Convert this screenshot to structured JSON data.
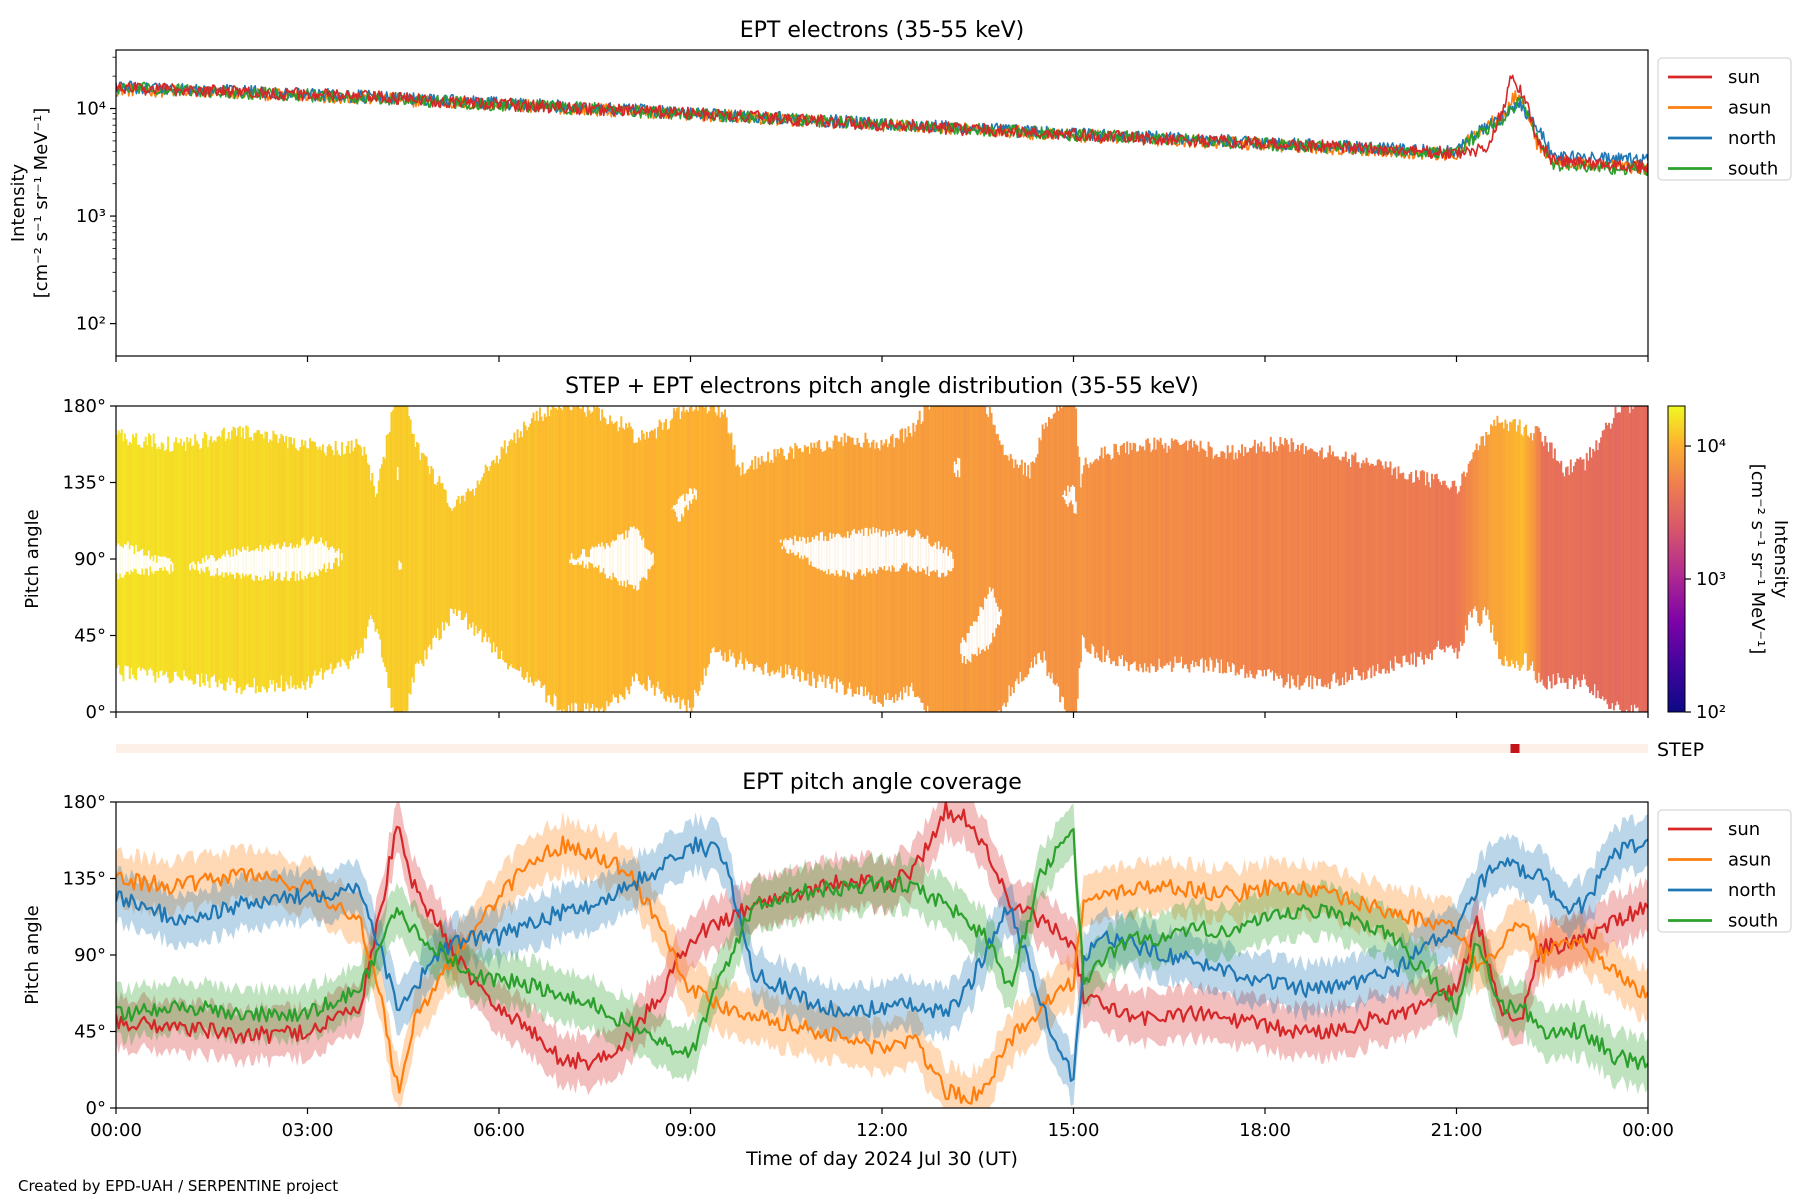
{
  "figure": {
    "footer": "Created by EPD-UAH / SERPENTINE project",
    "colors": {
      "sun": "#d62728",
      "asun": "#ff7f0e",
      "north": "#1f77b4",
      "south": "#2ca02c"
    }
  },
  "chart_data": [
    {
      "type": "line",
      "title": "EPT electrons (35-55 keV)",
      "ylabel_line1": "Intensity",
      "ylabel_line2": "[cm⁻² s⁻¹ sr⁻¹ MeV⁻¹]",
      "yscale": "log",
      "ylim": [
        50,
        35000
      ],
      "yticks": [
        {
          "value": 100,
          "label": "10²"
        },
        {
          "value": 1000,
          "label": "10³"
        },
        {
          "value": 10000,
          "label": "10⁴"
        }
      ],
      "xlim": [
        "00:00",
        "24:00"
      ],
      "legend": {
        "position": "outside-right",
        "entries": [
          "sun",
          "asun",
          "north",
          "south"
        ]
      },
      "series": [
        {
          "name": "sun",
          "color": "#d62728",
          "x": [
            "00:00",
            "01:00",
            "02:00",
            "03:00",
            "04:00",
            "05:00",
            "06:00",
            "07:00",
            "08:00",
            "09:00",
            "10:00",
            "11:00",
            "12:00",
            "13:00",
            "14:00",
            "15:00",
            "16:00",
            "17:00",
            "18:00",
            "19:00",
            "20:00",
            "21:00",
            "21:30",
            "21:45",
            "21:50",
            "22:00",
            "22:15",
            "22:30",
            "23:00",
            "24:00"
          ],
          "values": [
            15500,
            15000,
            14200,
            13500,
            12800,
            11800,
            11000,
            10200,
            9600,
            9000,
            8300,
            7700,
            7100,
            6600,
            6100,
            5700,
            5300,
            5000,
            4700,
            4400,
            4100,
            3800,
            4200,
            10000,
            20000,
            15000,
            5000,
            3300,
            3100,
            2900
          ]
        },
        {
          "name": "asun",
          "color": "#ff7f0e",
          "x": [
            "00:00",
            "03:00",
            "06:00",
            "09:00",
            "12:00",
            "15:00",
            "18:00",
            "21:00",
            "21:45",
            "21:55",
            "22:00",
            "22:15",
            "22:30",
            "24:00"
          ],
          "values": [
            15000,
            13200,
            10800,
            8800,
            7000,
            5600,
            4600,
            3700,
            9000,
            13000,
            12000,
            4800,
            3200,
            2800
          ]
        },
        {
          "name": "north",
          "color": "#1f77b4",
          "x": [
            "00:00",
            "03:00",
            "06:00",
            "09:00",
            "12:00",
            "15:00",
            "18:00",
            "21:00",
            "21:45",
            "22:00",
            "22:10",
            "22:30",
            "24:00"
          ],
          "values": [
            16000,
            13600,
            11100,
            9000,
            7200,
            5800,
            4800,
            3900,
            8500,
            11000,
            8000,
            3600,
            3300
          ]
        },
        {
          "name": "south",
          "color": "#2ca02c",
          "x": [
            "00:00",
            "03:00",
            "06:00",
            "09:00",
            "12:00",
            "15:00",
            "18:00",
            "21:00",
            "21:45",
            "22:00",
            "22:15",
            "22:30",
            "24:00"
          ],
          "values": [
            15600,
            13300,
            10900,
            8900,
            7100,
            5700,
            4700,
            3800,
            8000,
            12000,
            5500,
            3000,
            2700
          ]
        }
      ]
    },
    {
      "type": "heatmap",
      "title": "STEP + EPT electrons pitch angle distribution (35-55 keV)",
      "ylabel": "Pitch angle",
      "ylim": [
        0,
        180
      ],
      "yticks": [
        {
          "value": 0,
          "label": "0°"
        },
        {
          "value": 45,
          "label": "45°"
        },
        {
          "value": 90,
          "label": "90°"
        },
        {
          "value": 135,
          "label": "135°"
        },
        {
          "value": 180,
          "label": "180°"
        }
      ],
      "xlim": [
        "00:00",
        "24:00"
      ],
      "colorbar": {
        "label": "Intensity",
        "units": "[cm⁻² s⁻¹ sr⁻¹ MeV⁻¹]",
        "scale": "log",
        "range": [
          100,
          20000
        ],
        "ticks": [
          {
            "value": 100,
            "label": "10²"
          },
          {
            "value": 1000,
            "label": "10³"
          },
          {
            "value": 10000,
            "label": "10⁴"
          }
        ],
        "colormap": "plasma"
      },
      "intensity_trend": {
        "x": [
          "00:00",
          "03:00",
          "06:00",
          "09:00",
          "12:00",
          "15:00",
          "18:00",
          "21:00",
          "22:00",
          "22:20",
          "24:00"
        ],
        "values": [
          15500,
          13300,
          10900,
          8900,
          7100,
          5700,
          4700,
          3800,
          10000,
          3300,
          3000
        ]
      }
    },
    {
      "type": "bar",
      "label": "STEP",
      "xlim": [
        "00:00",
        "24:00"
      ],
      "marker_time": "21:55"
    },
    {
      "type": "line",
      "title": "EPT pitch angle coverage",
      "ylabel": "Pitch angle",
      "xlabel": "Time of day 2024 Jul 30 (UT)",
      "ylim": [
        0,
        180
      ],
      "yticks": [
        {
          "value": 0,
          "label": "0°"
        },
        {
          "value": 45,
          "label": "45°"
        },
        {
          "value": 90,
          "label": "90°"
        },
        {
          "value": 135,
          "label": "135°"
        },
        {
          "value": 180,
          "label": "180°"
        }
      ],
      "xticks": [
        "00:00",
        "03:00",
        "06:00",
        "09:00",
        "12:00",
        "15:00",
        "18:00",
        "21:00",
        "00:00"
      ],
      "legend": {
        "position": "outside-right",
        "entries": [
          "sun",
          "asun",
          "north",
          "south"
        ]
      },
      "series": [
        {
          "name": "sun",
          "color": "#d62728",
          "x": [
            "00:00",
            "01:00",
            "02:00",
            "03:00",
            "03:50",
            "04:10",
            "04:25",
            "04:40",
            "05:00",
            "05:30",
            "06:00",
            "06:30",
            "07:00",
            "07:30",
            "08:00",
            "08:30",
            "09:00",
            "09:30",
            "10:00",
            "10:30",
            "11:00",
            "11:30",
            "12:00",
            "12:30",
            "13:00",
            "13:20",
            "13:40",
            "14:00",
            "14:30",
            "15:00",
            "15:10",
            "15:30",
            "16:00",
            "16:30",
            "17:00",
            "17:30",
            "18:00",
            "18:30",
            "19:00",
            "19:30",
            "20:00",
            "20:30",
            "21:00",
            "21:20",
            "21:40",
            "22:00",
            "22:20",
            "22:40",
            "23:00",
            "23:30",
            "24:00"
          ],
          "values": [
            50,
            48,
            42,
            45,
            60,
            120,
            170,
            130,
            110,
            80,
            60,
            45,
            28,
            27,
            40,
            65,
            100,
            110,
            120,
            125,
            130,
            135,
            130,
            140,
            175,
            170,
            150,
            120,
            110,
            95,
            65,
            60,
            52,
            55,
            55,
            52,
            48,
            45,
            45,
            50,
            55,
            60,
            70,
            110,
            60,
            50,
            95,
            95,
            100,
            110,
            118
          ]
        },
        {
          "name": "asun",
          "color": "#ff7f0e",
          "x": [
            "00:00",
            "01:00",
            "02:00",
            "03:00",
            "03:50",
            "04:10",
            "04:25",
            "04:40",
            "05:00",
            "05:30",
            "06:00",
            "06:30",
            "07:00",
            "07:30",
            "08:00",
            "08:30",
            "09:00",
            "09:30",
            "10:00",
            "10:30",
            "11:00",
            "11:30",
            "12:00",
            "12:30",
            "13:00",
            "13:20",
            "13:40",
            "14:00",
            "14:30",
            "15:00",
            "15:10",
            "15:30",
            "16:00",
            "16:30",
            "17:00",
            "17:30",
            "18:00",
            "18:30",
            "19:00",
            "19:30",
            "20:00",
            "20:30",
            "21:00",
            "21:20",
            "21:40",
            "22:00",
            "22:20",
            "22:40",
            "23:00",
            "23:30",
            "24:00"
          ],
          "values": [
            135,
            130,
            138,
            130,
            110,
            60,
            10,
            50,
            70,
            100,
            125,
            145,
            155,
            150,
            140,
            110,
            70,
            60,
            55,
            50,
            45,
            40,
            35,
            40,
            10,
            5,
            15,
            40,
            60,
            75,
            120,
            125,
            130,
            130,
            128,
            125,
            130,
            130,
            125,
            120,
            115,
            110,
            105,
            80,
            95,
            110,
            90,
            95,
            95,
            80,
            65
          ]
        },
        {
          "name": "north",
          "color": "#1f77b4",
          "x": [
            "00:00",
            "01:00",
            "02:00",
            "03:00",
            "03:50",
            "04:10",
            "04:25",
            "04:40",
            "05:00",
            "05:30",
            "06:00",
            "06:30",
            "07:00",
            "07:30",
            "08:00",
            "08:30",
            "09:00",
            "09:30",
            "10:00",
            "10:30",
            "11:00",
            "11:30",
            "12:00",
            "12:30",
            "13:00",
            "13:20",
            "13:40",
            "14:00",
            "14:30",
            "15:00",
            "15:10",
            "15:30",
            "16:00",
            "16:30",
            "17:00",
            "17:30",
            "18:00",
            "18:30",
            "19:00",
            "19:30",
            "20:00",
            "20:30",
            "21:00",
            "21:20",
            "21:40",
            "22:00",
            "22:20",
            "22:40",
            "23:00",
            "23:30",
            "24:00"
          ],
          "values": [
            125,
            110,
            120,
            125,
            130,
            90,
            60,
            70,
            90,
            100,
            100,
            110,
            115,
            120,
            130,
            140,
            155,
            150,
            80,
            70,
            60,
            55,
            60,
            60,
            55,
            70,
            95,
            120,
            60,
            15,
            90,
            100,
            95,
            90,
            85,
            80,
            75,
            70,
            70,
            75,
            80,
            95,
            105,
            130,
            145,
            140,
            135,
            115,
            120,
            150,
            158
          ]
        },
        {
          "name": "south",
          "color": "#2ca02c",
          "x": [
            "00:00",
            "01:00",
            "02:00",
            "03:00",
            "03:50",
            "04:10",
            "04:25",
            "04:40",
            "05:00",
            "05:30",
            "06:00",
            "06:30",
            "07:00",
            "07:30",
            "08:00",
            "08:30",
            "09:00",
            "09:30",
            "10:00",
            "10:30",
            "11:00",
            "11:30",
            "12:00",
            "12:30",
            "13:00",
            "13:20",
            "13:40",
            "14:00",
            "14:30",
            "15:00",
            "15:10",
            "15:30",
            "16:00",
            "16:30",
            "17:00",
            "17:30",
            "18:00",
            "18:30",
            "19:00",
            "19:30",
            "20:00",
            "20:30",
            "21:00",
            "21:20",
            "21:40",
            "22:00",
            "22:20",
            "22:40",
            "23:00",
            "23:30",
            "24:00"
          ],
          "values": [
            55,
            60,
            55,
            55,
            70,
            100,
            115,
            105,
            95,
            80,
            75,
            72,
            65,
            60,
            50,
            40,
            30,
            80,
            120,
            125,
            128,
            130,
            132,
            130,
            120,
            110,
            100,
            70,
            140,
            160,
            70,
            90,
            100,
            100,
            105,
            105,
            110,
            115,
            115,
            110,
            100,
            80,
            60,
            100,
            60,
            60,
            45,
            45,
            45,
            30,
            25
          ]
        }
      ]
    }
  ]
}
